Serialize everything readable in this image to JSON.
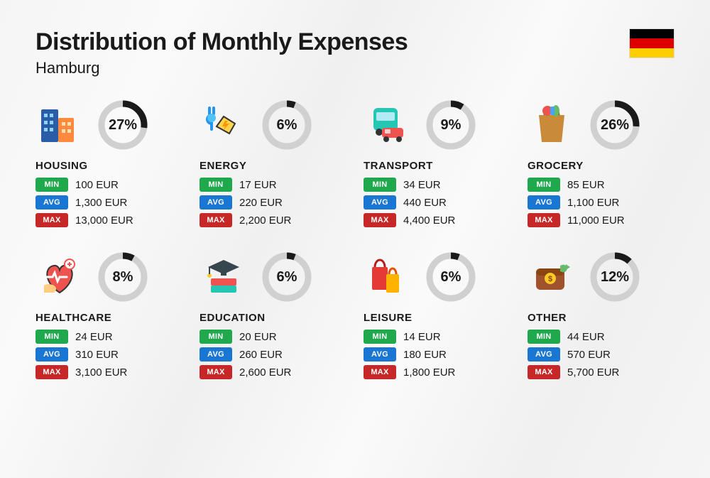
{
  "title": "Distribution of Monthly Expenses",
  "subtitle": "Hamburg",
  "flag_colors": [
    "#000000",
    "#dd0000",
    "#ffce00"
  ],
  "donut": {
    "radius": 30,
    "stroke_width": 9,
    "track_color": "#d0d0d0",
    "fill_color": "#1a1a1a"
  },
  "badges": {
    "min": {
      "label": "MIN",
      "color": "#1fa84c"
    },
    "avg": {
      "label": "AVG",
      "color": "#1976d2"
    },
    "max": {
      "label": "MAX",
      "color": "#c62828"
    }
  },
  "currency": "EUR",
  "categories": [
    {
      "name": "HOUSING",
      "pct": 27,
      "min": "100",
      "avg": "1,300",
      "max": "13,000",
      "icon": "housing"
    },
    {
      "name": "ENERGY",
      "pct": 6,
      "min": "17",
      "avg": "220",
      "max": "2,200",
      "icon": "energy"
    },
    {
      "name": "TRANSPORT",
      "pct": 9,
      "min": "34",
      "avg": "440",
      "max": "4,400",
      "icon": "transport"
    },
    {
      "name": "GROCERY",
      "pct": 26,
      "min": "85",
      "avg": "1,100",
      "max": "11,000",
      "icon": "grocery"
    },
    {
      "name": "HEALTHCARE",
      "pct": 8,
      "min": "24",
      "avg": "310",
      "max": "3,100",
      "icon": "healthcare"
    },
    {
      "name": "EDUCATION",
      "pct": 6,
      "min": "20",
      "avg": "260",
      "max": "2,600",
      "icon": "education"
    },
    {
      "name": "LEISURE",
      "pct": 6,
      "min": "14",
      "avg": "180",
      "max": "1,800",
      "icon": "leisure"
    },
    {
      "name": "OTHER",
      "pct": 12,
      "min": "44",
      "avg": "570",
      "max": "5,700",
      "icon": "other"
    }
  ]
}
